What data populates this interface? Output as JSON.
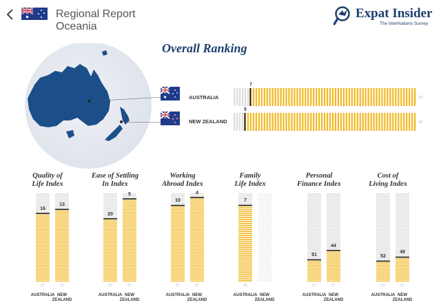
{
  "header": {
    "title": "Regional Report",
    "subtitle": "Oceania",
    "logo_text": "Expat Insider",
    "logo_tagline": "The InterNations Survey"
  },
  "overall": {
    "title": "Overall Ranking",
    "countries": [
      {
        "name": "AUSTRALIA",
        "rank": 7,
        "total": 67
      },
      {
        "name": "NEW ZEALAND",
        "rank": 5,
        "total": 67
      }
    ]
  },
  "indices": [
    {
      "title_line1": "Quality of",
      "title_line2": "Life Index",
      "australia": 16,
      "new_zealand": 13,
      "total": 67
    },
    {
      "title_line1": "Ease of Settling",
      "title_line2": "In Index",
      "australia": 20,
      "new_zealand": 5,
      "total": 67
    },
    {
      "title_line1": "Working",
      "title_line2": "Abroad Index",
      "australia": 10,
      "new_zealand": 4,
      "total": 67
    },
    {
      "title_line1": "Family",
      "title_line2": "Life Index",
      "australia": 7,
      "new_zealand": null,
      "total": 45
    },
    {
      "title_line1": "Personal",
      "title_line2": "Finance Index",
      "australia": 51,
      "new_zealand": 44,
      "total": 67
    },
    {
      "title_line1": "Cost of",
      "title_line2": "Living Index",
      "australia": 52,
      "new_zealand": 49,
      "total": 67
    }
  ],
  "column_labels": {
    "australia": "AUSTRALIA",
    "new_zealand_line1": "NEW",
    "new_zealand_line2": "ZEALAND"
  },
  "colors": {
    "accent": "#f2b71f",
    "empty": "#dcdcdc",
    "brand": "#1c3f6e",
    "map_land": "#1c4f8a",
    "map_sea": "#e7ebf2"
  }
}
